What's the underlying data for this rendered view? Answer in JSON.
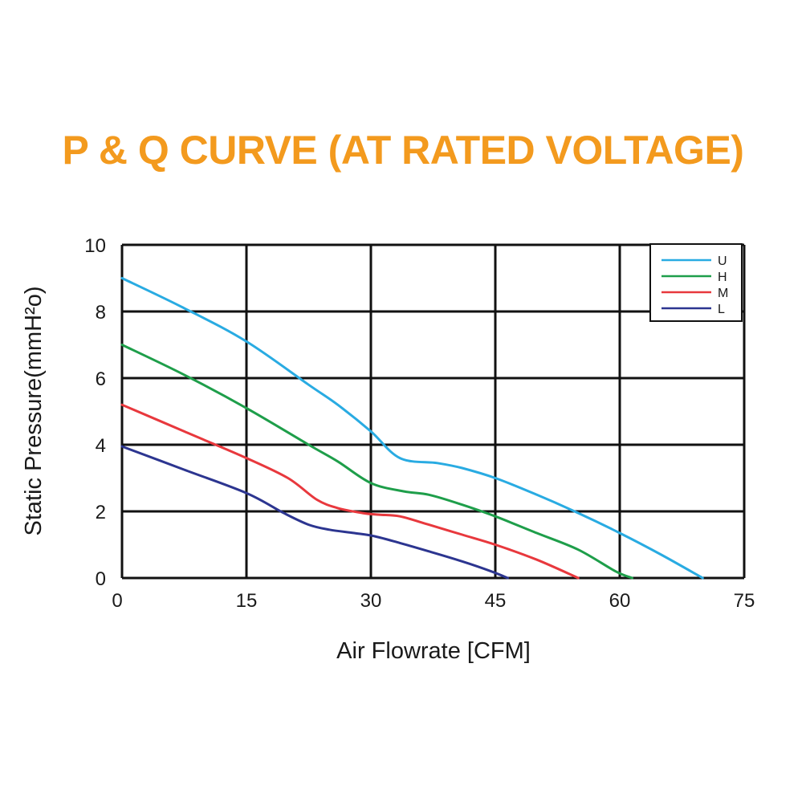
{
  "chart_data": {
    "type": "line",
    "title": "P & Q CURVE (AT RATED VOLTAGE)",
    "xlabel": "Air Flowrate [CFM]",
    "ylabel": "Static Pressure(mmH²o)",
    "xlim": [
      0,
      75
    ],
    "ylim": [
      0,
      10
    ],
    "x_ticks": [
      "0",
      "15",
      "30",
      "45",
      "60",
      "75"
    ],
    "y_ticks": [
      "0",
      "2",
      "4",
      "6",
      "8",
      "10"
    ],
    "grid": true,
    "legend_position": "top-right",
    "series": [
      {
        "name": "U",
        "color": "#29abe2",
        "points": [
          [
            0,
            9.0
          ],
          [
            7.5,
            8.1
          ],
          [
            15,
            7.1
          ],
          [
            22.5,
            5.8
          ],
          [
            26,
            5.2
          ],
          [
            30,
            4.4
          ],
          [
            33.5,
            3.6
          ],
          [
            38,
            3.45
          ],
          [
            41,
            3.3
          ],
          [
            45,
            3.0
          ],
          [
            50,
            2.5
          ],
          [
            55,
            1.95
          ],
          [
            60,
            1.35
          ],
          [
            65,
            0.7
          ],
          [
            70,
            0
          ]
        ]
      },
      {
        "name": "H",
        "color": "#1e9e4a",
        "points": [
          [
            0,
            7.0
          ],
          [
            7.5,
            6.1
          ],
          [
            15,
            5.1
          ],
          [
            22.5,
            4.0
          ],
          [
            26,
            3.5
          ],
          [
            30,
            2.85
          ],
          [
            34,
            2.6
          ],
          [
            37,
            2.5
          ],
          [
            41,
            2.2
          ],
          [
            45,
            1.85
          ],
          [
            50,
            1.35
          ],
          [
            55,
            0.85
          ],
          [
            59.5,
            0.2
          ],
          [
            61.5,
            0
          ]
        ]
      },
      {
        "name": "M",
        "color": "#e8383d",
        "points": [
          [
            0,
            5.2
          ],
          [
            7.5,
            4.4
          ],
          [
            15,
            3.6
          ],
          [
            20,
            3.0
          ],
          [
            23.5,
            2.35
          ],
          [
            26,
            2.1
          ],
          [
            29,
            1.95
          ],
          [
            31,
            1.9
          ],
          [
            33.5,
            1.85
          ],
          [
            37,
            1.6
          ],
          [
            41,
            1.3
          ],
          [
            45,
            1.0
          ],
          [
            50,
            0.55
          ],
          [
            55,
            0
          ]
        ]
      },
      {
        "name": "L",
        "color": "#2c3590",
        "points": [
          [
            0,
            3.95
          ],
          [
            7.5,
            3.25
          ],
          [
            15,
            2.55
          ],
          [
            19.5,
            1.95
          ],
          [
            22.5,
            1.6
          ],
          [
            25,
            1.45
          ],
          [
            28,
            1.35
          ],
          [
            30.5,
            1.25
          ],
          [
            33.5,
            1.05
          ],
          [
            37,
            0.8
          ],
          [
            41,
            0.5
          ],
          [
            44.5,
            0.2
          ],
          [
            46.5,
            0
          ]
        ]
      }
    ]
  }
}
